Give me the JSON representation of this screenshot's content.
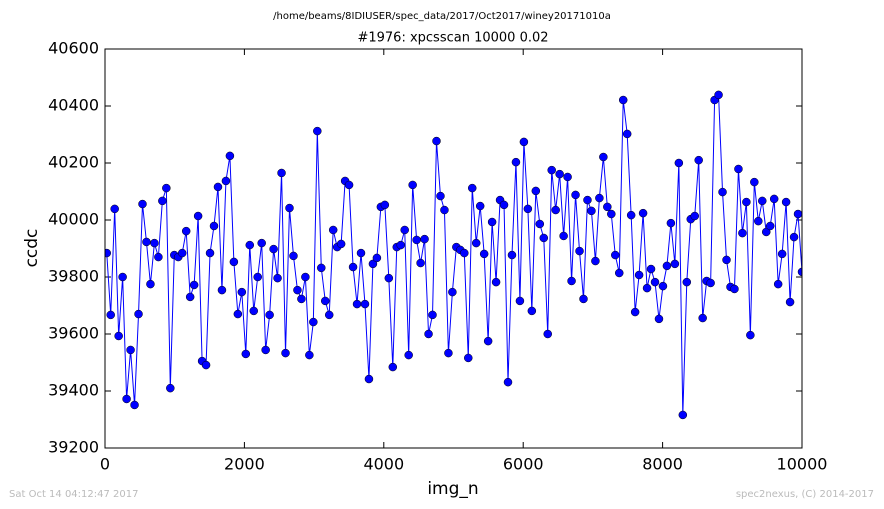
{
  "chart_data": {
    "type": "line",
    "suptitle": "/home/beams/8IDIUSER/spec_data/2017/Oct2017/winey20171010a",
    "title": "#1976: xpcsscan 10000 0.02",
    "xlabel": "img_n",
    "ylabel": "ccdc",
    "color": "#0000ff",
    "xlim": [
      0,
      10000
    ],
    "xticks": [
      0,
      2000,
      4000,
      6000,
      8000,
      10000
    ],
    "ylim": [
      39200,
      40600
    ],
    "yticks": [
      39200,
      39400,
      39600,
      39800,
      40000,
      40200,
      40400,
      40600
    ],
    "x": [
      25,
      82,
      139,
      196,
      253,
      310,
      367,
      424,
      481,
      538,
      595,
      652,
      709,
      766,
      823,
      880,
      937,
      994,
      1051,
      1108,
      1165,
      1222,
      1279,
      1336,
      1393,
      1450,
      1507,
      1564,
      1621,
      1678,
      1735,
      1792,
      1849,
      1906,
      1963,
      2020,
      2077,
      2134,
      2191,
      2248,
      2305,
      2362,
      2419,
      2476,
      2533,
      2590,
      2647,
      2704,
      2761,
      2818,
      2875,
      2932,
      2989,
      3046,
      3103,
      3160,
      3217,
      3274,
      3331,
      3388,
      3445,
      3502,
      3559,
      3616,
      3673,
      3730,
      3787,
      3844,
      3901,
      3958,
      4015,
      4072,
      4129,
      4186,
      4243,
      4300,
      4357,
      4414,
      4471,
      4528,
      4585,
      4642,
      4699,
      4756,
      4813,
      4870,
      4927,
      4984,
      5041,
      5098,
      5155,
      5212,
      5269,
      5326,
      5383,
      5440,
      5497,
      5554,
      5611,
      5668,
      5725,
      5782,
      5839,
      5896,
      5953,
      6010,
      6067,
      6124,
      6181,
      6238,
      6295,
      6352,
      6409,
      6466,
      6523,
      6580,
      6637,
      6694,
      6751,
      6808,
      6865,
      6922,
      6979,
      7036,
      7093,
      7150,
      7207,
      7264,
      7321,
      7378,
      7435,
      7492,
      7549,
      7606,
      7663,
      7720,
      7777,
      7834,
      7891,
      7948,
      8005,
      8062,
      8119,
      8176,
      8233,
      8290,
      8347,
      8404,
      8461,
      8518,
      8575,
      8632,
      8689,
      8746,
      8803,
      8860,
      8917,
      8974,
      9031,
      9088,
      9145,
      9202,
      9259,
      9316,
      9373,
      9430,
      9487,
      9544,
      9601,
      9658,
      9715,
      9772,
      9829,
      9886,
      9943,
      10000
    ],
    "values": [
      39884,
      39667,
      40039,
      39593,
      39800,
      39372,
      39544,
      39351,
      39670,
      40056,
      39923,
      39775,
      39919,
      39870,
      40067,
      40112,
      39410,
      39877,
      39870,
      39884,
      39961,
      39730,
      39772,
      40014,
      39505,
      39491,
      39884,
      39979,
      40116,
      39754,
      40137,
      40225,
      39853,
      39670,
      39747,
      39530,
      39912,
      39681,
      39800,
      39919,
      39544,
      39667,
      39898,
      39796,
      40165,
      39533,
      40042,
      39874,
      39754,
      39723,
      39800,
      39526,
      39642,
      40312,
      39832,
      39716,
      39667,
      39965,
      39905,
      39916,
      40137,
      40123,
      39835,
      39705,
      39884,
      39705,
      39442,
      39846,
      39867,
      40046,
      40053,
      39796,
      39484,
      39905,
      39912,
      39965,
      39526,
      40123,
      39930,
      39849,
      39933,
      39600,
      39667,
      40277,
      40084,
      40035,
      39533,
      39747,
      39905,
      39895,
      39884,
      39516,
      40112,
      39919,
      40049,
      39881,
      39575,
      39993,
      39782,
      40070,
      40053,
      39431,
      39877,
      40203,
      39716,
      40274,
      40039,
      39681,
      40102,
      39986,
      39937,
      39600,
      40175,
      40035,
      40161,
      39944,
      40151,
      39786,
      40088,
      39891,
      39723,
      40070,
      40032,
      39856,
      40077,
      40221,
      40046,
      40021,
      39877,
      39814,
      40421,
      40302,
      40017,
      39677,
      39807,
      40024,
      39761,
      39828,
      39782,
      39653,
      39768,
      39839,
      39989,
      39846,
      40200,
      39316,
      39782,
      40003,
      40014,
      40210,
      39656,
      39786,
      39779,
      40421,
      40439,
      40098,
      39860,
      39765,
      39758,
      40179,
      39954,
      40063,
      39596,
      40133,
      39996,
      40067,
      39958,
      39979,
      40074,
      39775,
      39881,
      40063,
      39712,
      39940,
      40021,
      39818
    ]
  },
  "footer": {
    "timestamp": "Sat Oct 14 04:12:47 2017",
    "credit": "spec2nexus, (C) 2014-2017"
  }
}
